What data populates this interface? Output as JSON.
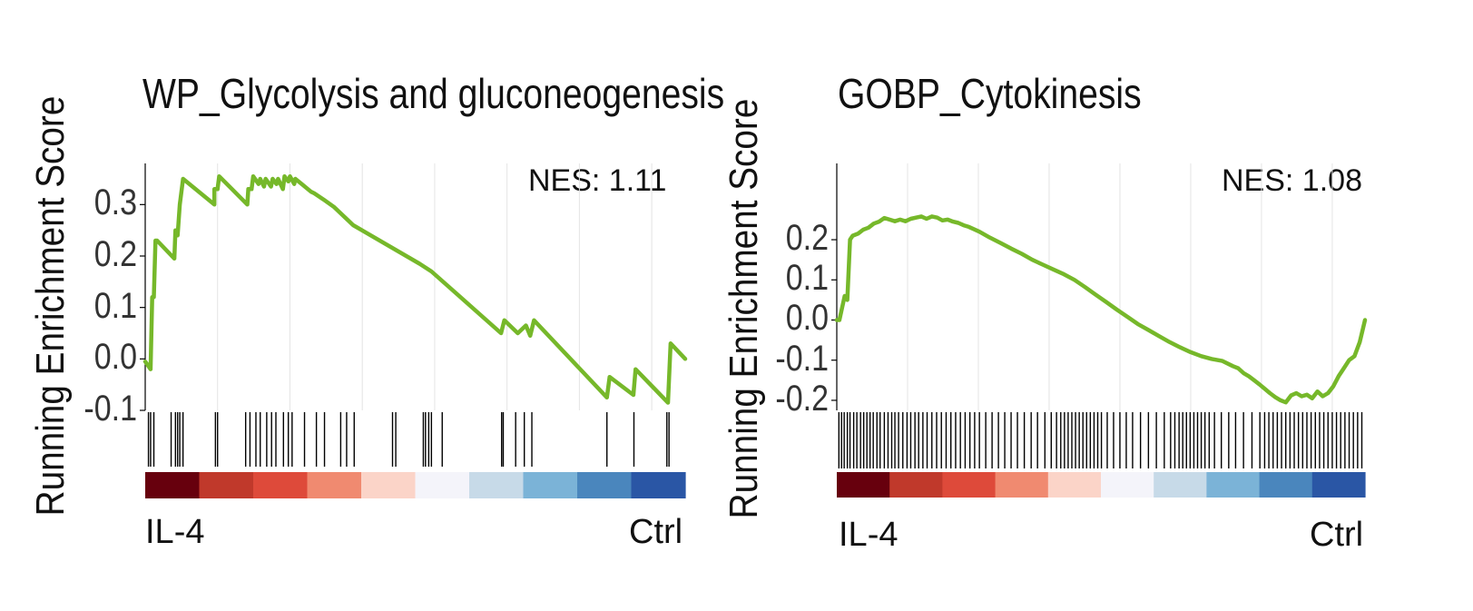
{
  "colors": {
    "curve": "#76b82a",
    "hit": "#000000",
    "grid": "#e4e4e4",
    "axis": "#000000",
    "ramp": [
      "#67000d",
      "#c0392b",
      "#de4a3a",
      "#f08a70",
      "#fbd4c8",
      "#f4f4fa",
      "#c7dae8",
      "#7bb3d7",
      "#4a86bd",
      "#2a56a5"
    ]
  },
  "chart_data": [
    {
      "type": "line",
      "title": "WP_Glycolysis and gluconeogenesis",
      "ylabel": "Running Enrichment Score",
      "annotation": "NES: 1.11",
      "left_label": "IL-4",
      "right_label": "Ctrl",
      "xlim": [
        0,
        100
      ],
      "ylim": [
        -0.1,
        0.38
      ],
      "yticks": [
        -0.1,
        0.0,
        0.1,
        0.2,
        0.3
      ],
      "ytick_labels": [
        "-0.1",
        "0.0",
        "0.1",
        "0.2",
        "0.3"
      ],
      "x_grid": [
        0,
        13.4,
        26.8,
        40.2,
        53.6,
        67.0,
        80.4,
        93.8
      ],
      "curve": {
        "x": [
          0,
          1.0,
          1.3,
          1.6,
          1.9,
          2.2,
          5.4,
          5.6,
          6.0,
          6.4,
          7.0,
          12.8,
          12.8,
          13.4,
          13.7,
          18.9,
          19.1,
          19.7,
          20.0,
          21.0,
          21.3,
          22.0,
          22.3,
          23.3,
          23.6,
          24.3,
          24.6,
          25.5,
          25.8,
          26.5,
          26.8,
          27.6,
          27.8,
          29.0,
          30.7,
          31.3,
          33.0,
          35.0,
          38.5,
          50.8,
          53.0,
          65.9,
          66.5,
          69.0,
          70.5,
          71.3,
          72.0,
          85.5,
          86.0,
          90.4,
          90.8,
          96.8,
          97.3,
          100
        ],
        "y": [
          -0.005,
          -0.02,
          0.12,
          0.12,
          0.23,
          0.23,
          0.195,
          0.25,
          0.24,
          0.3,
          0.35,
          0.3,
          0.33,
          0.33,
          0.355,
          0.3,
          0.33,
          0.33,
          0.355,
          0.34,
          0.35,
          0.335,
          0.35,
          0.335,
          0.35,
          0.34,
          0.35,
          0.33,
          0.355,
          0.345,
          0.355,
          0.34,
          0.35,
          0.34,
          0.325,
          0.322,
          0.31,
          0.295,
          0.26,
          0.185,
          0.17,
          0.05,
          0.075,
          0.05,
          0.065,
          0.045,
          0.075,
          -0.075,
          -0.035,
          -0.07,
          -0.02,
          -0.085,
          0.03,
          0.0
        ]
      },
      "hits": [
        0.6,
        1.0,
        1.6,
        4.8,
        5.6,
        6.0,
        6.4,
        7.0,
        13.0,
        13.4,
        18.6,
        19.4,
        20.5,
        21.3,
        22.5,
        23.4,
        24.2,
        25.6,
        26.5,
        27.2,
        29.5,
        31.7,
        33.2,
        36.2,
        37.3,
        38.7,
        45.8,
        46.4,
        51.5,
        51.9,
        52.5,
        53.0,
        55.0,
        66.0,
        66.3,
        68.6,
        70.2,
        71.6,
        85.5,
        90.5,
        96.6,
        97.0
      ]
    },
    {
      "type": "line",
      "title": "GOBP_Cytokinesis",
      "ylabel": "Running Enrichment Score",
      "annotation": "NES: 1.08",
      "left_label": "IL-4",
      "right_label": "Ctrl",
      "xlim": [
        0,
        100
      ],
      "ylim": [
        -0.225,
        0.39
      ],
      "yticks": [
        -0.2,
        -0.1,
        0.0,
        0.1,
        0.2
      ],
      "ytick_labels": [
        "-0.2",
        "-0.1",
        "0.0",
        "0.1",
        "0.2"
      ],
      "x_grid": [
        0,
        13.4,
        26.8,
        40.2,
        53.6,
        67.0,
        80.4,
        93.8
      ],
      "curve": {
        "x": [
          0,
          0.5,
          1.0,
          1.5,
          2.0,
          2.5,
          3.0,
          4.0,
          5.0,
          6.0,
          7.0,
          8.0,
          9.0,
          10.0,
          11.0,
          12.0,
          13.0,
          14.0,
          15.0,
          16.0,
          17.0,
          18.0,
          19.0,
          20.0,
          21.0,
          22.0,
          23.0,
          24.0,
          25.0,
          27.0,
          29.0,
          31.0,
          33.0,
          35.0,
          37.0,
          39.0,
          41.0,
          43.0,
          45.0,
          47.0,
          49.0,
          51.0,
          53.0,
          55.0,
          57.0,
          59.0,
          61.0,
          63.0,
          65.0,
          67.0,
          69.0,
          71.0,
          73.0,
          75.0,
          76.0,
          77.0,
          78.0,
          79.0,
          80.0,
          81.0,
          82.0,
          83.0,
          84.0,
          85.0,
          86.0,
          87.0,
          88.0,
          89.0,
          90.0,
          91.0,
          92.0,
          93.0,
          94.0,
          95.0,
          96.0,
          97.0,
          98.0,
          99.0,
          100
        ],
        "y": [
          0.0,
          0.0,
          0.03,
          0.06,
          0.05,
          0.2,
          0.21,
          0.215,
          0.225,
          0.23,
          0.24,
          0.245,
          0.254,
          0.25,
          0.246,
          0.25,
          0.246,
          0.252,
          0.255,
          0.258,
          0.252,
          0.258,
          0.255,
          0.248,
          0.25,
          0.245,
          0.242,
          0.236,
          0.232,
          0.22,
          0.205,
          0.192,
          0.178,
          0.165,
          0.15,
          0.138,
          0.126,
          0.114,
          0.1,
          0.082,
          0.063,
          0.045,
          0.026,
          0.008,
          -0.01,
          -0.025,
          -0.04,
          -0.055,
          -0.068,
          -0.08,
          -0.09,
          -0.097,
          -0.102,
          -0.115,
          -0.12,
          -0.132,
          -0.14,
          -0.15,
          -0.16,
          -0.171,
          -0.182,
          -0.192,
          -0.2,
          -0.205,
          -0.188,
          -0.182,
          -0.19,
          -0.186,
          -0.195,
          -0.178,
          -0.19,
          -0.182,
          -0.165,
          -0.14,
          -0.12,
          -0.1,
          -0.09,
          -0.055,
          0.0
        ]
      },
      "hits": [
        0.4,
        0.9,
        1.4,
        2.0,
        2.5,
        3.2,
        3.8,
        4.5,
        5.1,
        5.7,
        6.3,
        6.9,
        7.6,
        8.2,
        9.0,
        9.7,
        10.4,
        11.0,
        11.7,
        12.5,
        13.3,
        14.0,
        14.8,
        15.5,
        16.3,
        17.1,
        18.0,
        18.9,
        19.8,
        20.7,
        21.6,
        22.5,
        23.4,
        24.3,
        25.2,
        26.1,
        27.0,
        28.2,
        29.4,
        30.6,
        31.8,
        33.0,
        34.2,
        35.5,
        36.8,
        38.0,
        39.4,
        40.6,
        41.6,
        42.4,
        43.1,
        43.8,
        44.5,
        45.2,
        45.9,
        46.6,
        47.3,
        48.0,
        48.7,
        49.4,
        50.1,
        51.2,
        52.4,
        53.6,
        54.8,
        56.0,
        57.5,
        59.0,
        60.5,
        62.0,
        63.2,
        64.0,
        64.8,
        65.5,
        66.2,
        66.9,
        67.6,
        68.3,
        69.0,
        69.7,
        70.5,
        71.5,
        72.8,
        74.2,
        75.5,
        77.0,
        78.6,
        80.1,
        81.0,
        81.8,
        82.6,
        83.4,
        84.2,
        85.0,
        85.8,
        86.6,
        87.4,
        88.2,
        89.0,
        89.8,
        90.6,
        91.4,
        92.2,
        93.0,
        93.8,
        94.6,
        95.4,
        96.2,
        97.0,
        97.8,
        98.6,
        99.4
      ]
    }
  ]
}
